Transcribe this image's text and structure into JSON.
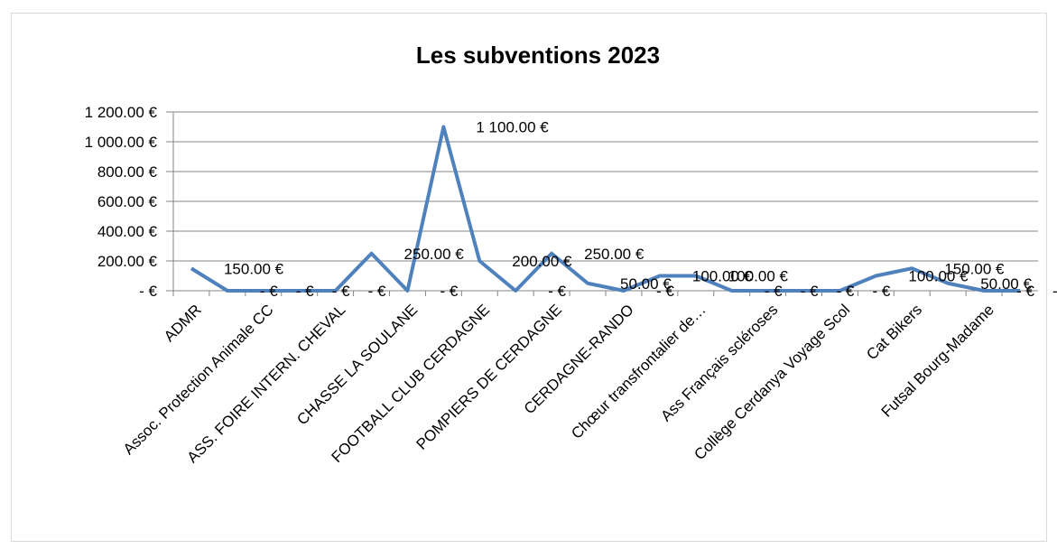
{
  "chart_data": {
    "type": "line",
    "title": "Les subventions 2023",
    "categories": [
      "ADMR",
      null,
      "Assoc. Protection Animale CC",
      null,
      "ASS. FOIRE INTERN. CHEVAL",
      null,
      "CHASSE LA SOULANE",
      null,
      "FOOTBALL CLUB CERDAGNE",
      null,
      "POMPIERS DE CERDAGNE",
      null,
      "CERDAGNE-RANDO",
      null,
      "Chœur transfrontalier de…",
      null,
      "Ass Français scléroses",
      null,
      "Collège Cerdanya Voyage Scol",
      null,
      "Cat Bikers",
      null,
      "Futsal Bourg-Madame",
      null
    ],
    "series": [
      {
        "name": "Subventions",
        "color": "#4f81bd",
        "values": [
          150,
          0,
          0,
          0,
          0,
          250,
          0,
          1100,
          200,
          0,
          250,
          50,
          0,
          100,
          100,
          0,
          0,
          0,
          0,
          100,
          150,
          50,
          0,
          0
        ],
        "value_labels": [
          "150.00 €",
          "- €",
          "- €",
          "- €",
          "- €",
          "250.00 €",
          "- €",
          "1 100.00 €",
          "200.00 €",
          "- €",
          "250.00 €",
          "50.00 €",
          "- €",
          "100.00 €",
          "100.00 €",
          "- €",
          "- €",
          "- €",
          "- €",
          "100.00 €",
          "150.00 €",
          "50.00 €",
          "- €",
          "- €"
        ]
      }
    ],
    "ylim": [
      0,
      1200
    ],
    "yticks": [
      {
        "value": 0,
        "label": "-  €"
      },
      {
        "value": 200,
        "label": "200.00 €"
      },
      {
        "value": 400,
        "label": "400.00 €"
      },
      {
        "value": 600,
        "label": "600.00 €"
      },
      {
        "value": 800,
        "label": "800.00 €"
      },
      {
        "value": 1000,
        "label": "1 000.00 €"
      },
      {
        "value": 1200,
        "label": "1 200.00 €"
      }
    ],
    "grid": true
  }
}
